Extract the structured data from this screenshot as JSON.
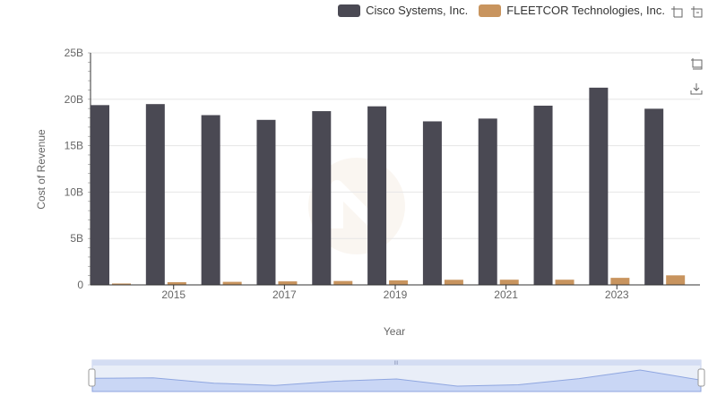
{
  "chart_data": {
    "type": "bar",
    "xlabel": "Year",
    "ylabel": "Cost of Revenue",
    "x": [
      2014,
      2015,
      2016,
      2017,
      2018,
      2019,
      2020,
      2021,
      2022,
      2023,
      2024
    ],
    "x_tick_labels": [
      "2015",
      "2017",
      "2019",
      "2021",
      "2023"
    ],
    "y_tick_labels": [
      "0",
      "5B",
      "10B",
      "15B",
      "20B",
      "25B"
    ],
    "ylim": [
      0,
      25000000000
    ],
    "grid": true,
    "legend_position": "top-right",
    "series": [
      {
        "name": "Cisco Systems, Inc.",
        "color": "#4a4953",
        "values": [
          19370000000,
          19480000000,
          18290000000,
          17780000000,
          18720000000,
          19240000000,
          17620000000,
          17920000000,
          19310000000,
          21250000000,
          18980000000
        ]
      },
      {
        "name": "FLEETCOR Technologies, Inc.",
        "color": "#c8945e",
        "values": [
          150000000,
          290000000,
          330000000,
          380000000,
          420000000,
          490000000,
          550000000,
          560000000,
          560000000,
          760000000,
          1030000000
        ]
      }
    ]
  },
  "toolbox": {
    "icons": [
      "zoom-icon",
      "zoom-reset-icon"
    ]
  },
  "side_tools": {
    "icons": [
      "restore-icon",
      "save-image-icon"
    ]
  }
}
